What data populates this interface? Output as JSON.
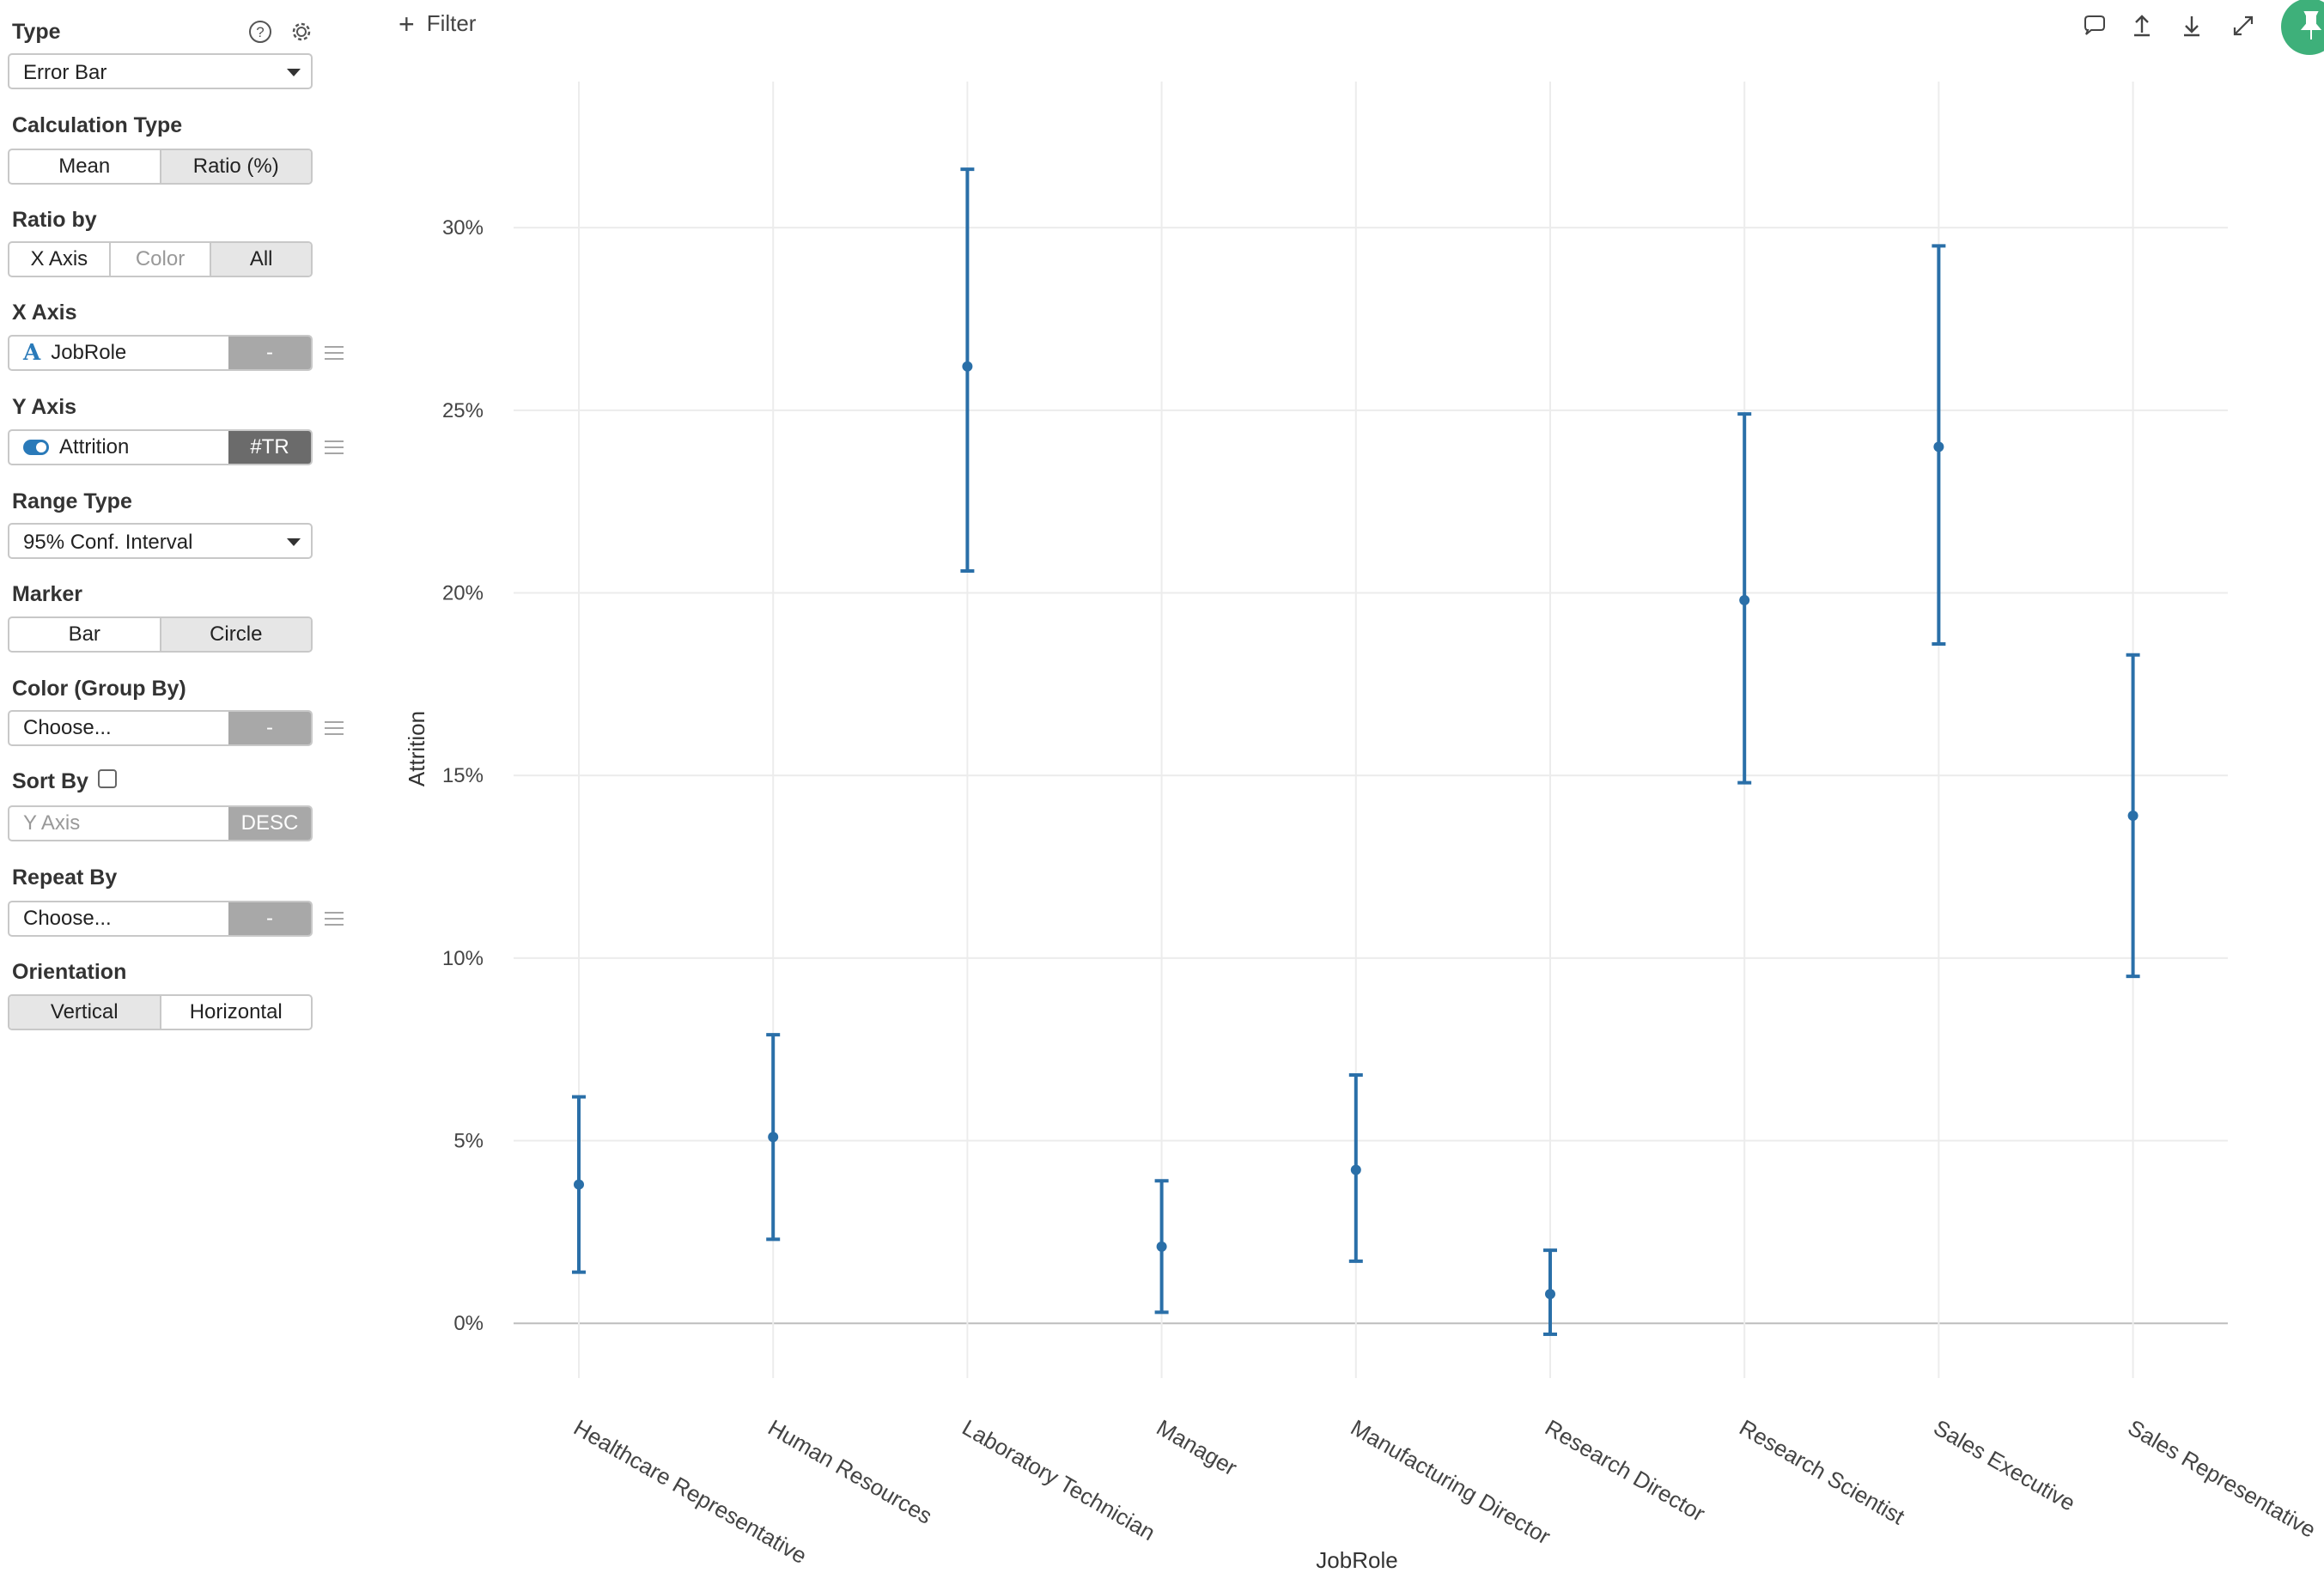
{
  "sidebar": {
    "type": {
      "label": "Type",
      "value": "Error Bar"
    },
    "calculation_type": {
      "label": "Calculation Type",
      "options": [
        "Mean",
        "Ratio (%)"
      ],
      "selected": "Ratio (%)"
    },
    "ratio_by": {
      "label": "Ratio by",
      "options": [
        "X Axis",
        "Color",
        "All"
      ],
      "selected": "All"
    },
    "x_axis": {
      "label": "X Axis",
      "value": "JobRole",
      "side": "-"
    },
    "y_axis": {
      "label": "Y Axis",
      "value": "Attrition",
      "side": "#TR"
    },
    "range_type": {
      "label": "Range Type",
      "value": "95% Conf. Interval"
    },
    "marker": {
      "label": "Marker",
      "options": [
        "Bar",
        "Circle"
      ],
      "selected": "Circle"
    },
    "color": {
      "label": "Color (Group By)",
      "value": "Choose...",
      "side": "-"
    },
    "sort_by": {
      "label": "Sort By",
      "placeholder": "Y Axis",
      "side": "DESC",
      "checked": false
    },
    "repeat_by": {
      "label": "Repeat By",
      "value": "Choose...",
      "side": "-"
    },
    "orientation": {
      "label": "Orientation",
      "options": [
        "Vertical",
        "Horizontal"
      ],
      "selected": "Vertical"
    }
  },
  "topbar": {
    "filter_label": "Filter",
    "icons": [
      "comment-icon",
      "upload-icon",
      "download-icon",
      "expand-icon",
      "pin-icon"
    ]
  },
  "colors": {
    "series": "#2a6fa8",
    "pin": "#3eb07a",
    "grid": "#ececec"
  },
  "chart_data": {
    "type": "error_bar",
    "xlabel": "JobRole",
    "ylabel": "Attrition",
    "ylim": [
      -1.5,
      34
    ],
    "yticks": [
      0,
      5,
      10,
      15,
      20,
      25,
      30
    ],
    "ytick_labels": [
      "0%",
      "5%",
      "10%",
      "15%",
      "20%",
      "25%",
      "30%"
    ],
    "grid": true,
    "categories": [
      "Healthcare Representative",
      "Human Resources",
      "Laboratory Technician",
      "Manager",
      "Manufacturing Director",
      "Research Director",
      "Research Scientist",
      "Sales Executive",
      "Sales Representative"
    ],
    "values": [
      3.8,
      5.1,
      26.2,
      2.1,
      4.2,
      0.8,
      19.8,
      24.0,
      13.9
    ],
    "lower": [
      1.4,
      2.3,
      20.6,
      0.3,
      1.7,
      -0.3,
      14.8,
      18.6,
      9.5
    ],
    "upper": [
      6.2,
      7.9,
      31.6,
      3.9,
      6.8,
      2.0,
      24.9,
      29.5,
      18.3
    ]
  }
}
